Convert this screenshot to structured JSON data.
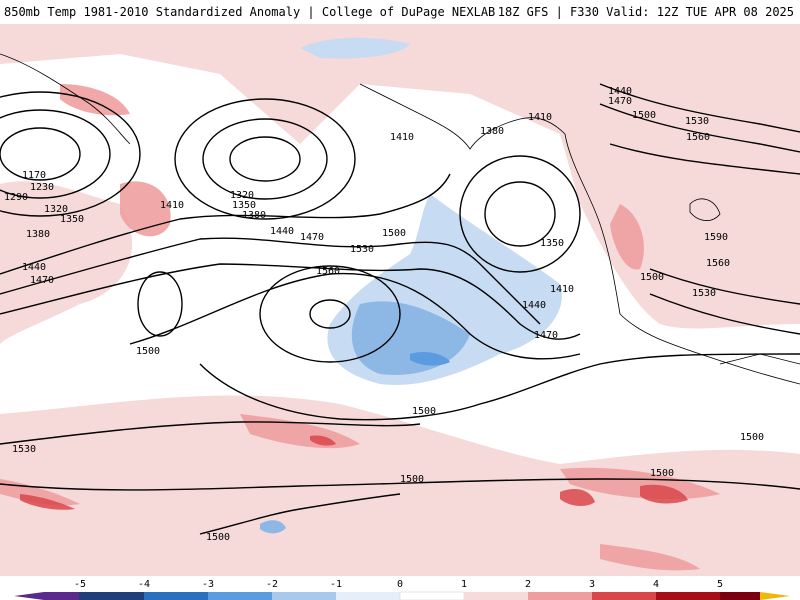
{
  "header": {
    "title_left": "850mb Temp 1981-2010 Standardized Anomaly | College of DuPage NEXLAB",
    "title_right": "18Z GFS | F330 Valid: 12Z TUE APR 08 2025"
  },
  "map": {
    "field": "850mb temperature standardized anomaly",
    "contour_labels": [
      "1170",
      "1230",
      "1290",
      "1320",
      "1350",
      "1380",
      "1410",
      "1440",
      "1470",
      "1320",
      "1350",
      "1380",
      "1410",
      "1440",
      "1470",
      "1500",
      "1530",
      "1560",
      "1410",
      "1380",
      "1350",
      "1410",
      "1440",
      "1470",
      "1500",
      "1500",
      "1530",
      "1440",
      "1470",
      "1500",
      "1530",
      "1560",
      "1590",
      "1560",
      "1530",
      "1500",
      "1500",
      "1500",
      "1500",
      "1500"
    ]
  },
  "colorbar": {
    "ticks": [
      "-5",
      "-4",
      "-3",
      "-2",
      "-1",
      "0",
      "1",
      "2",
      "3",
      "4",
      "5"
    ],
    "colors": [
      "#5b2a8c",
      "#1f3e7a",
      "#2b6fbf",
      "#5b9be0",
      "#a9c9ec",
      "#e6eff9",
      "#ffffff",
      "#f7dada",
      "#ee9e9e",
      "#d9474b",
      "#a50f15",
      "#7a0010",
      "#f2b705"
    ]
  }
}
